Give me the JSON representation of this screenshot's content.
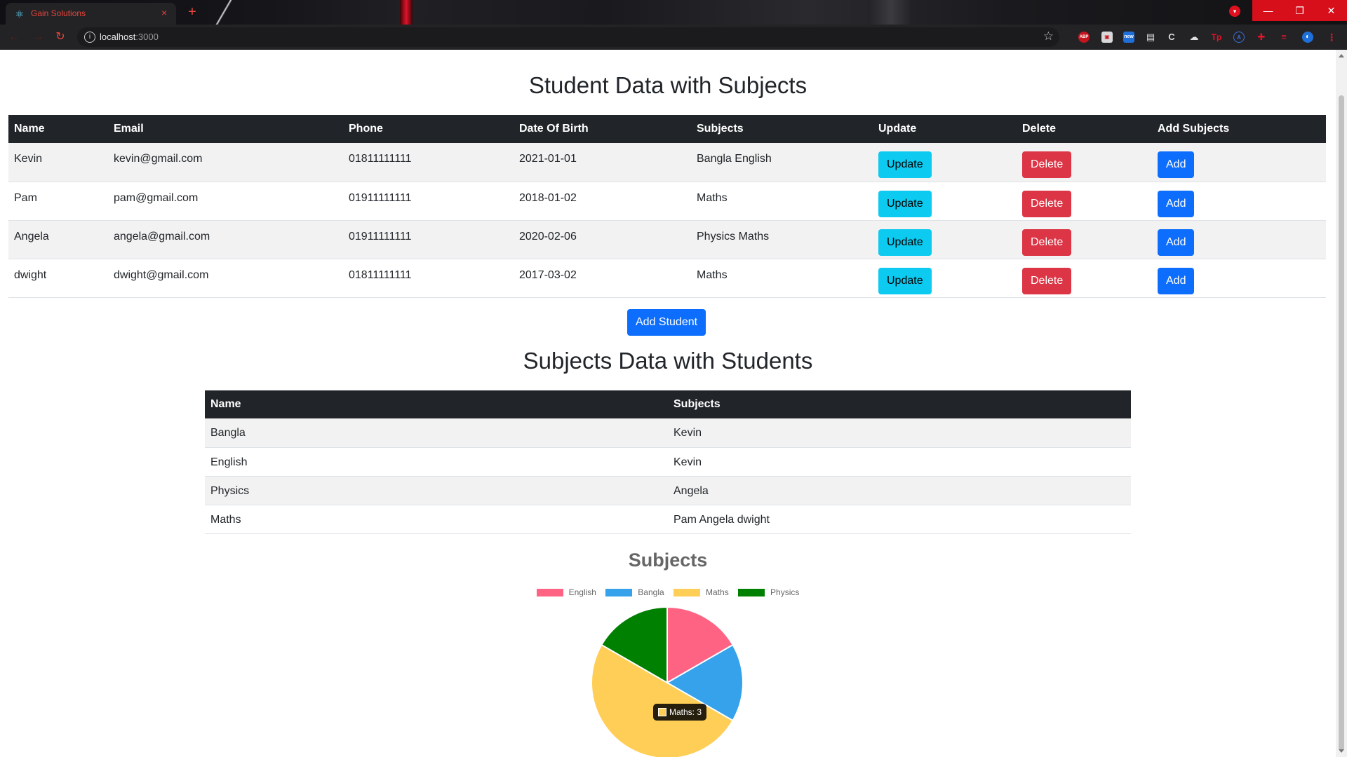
{
  "browser": {
    "tab_title": "Gain Solutions",
    "tab_close": "×",
    "new_tab": "+",
    "url_host": "localhost",
    "url_port": ":3000",
    "window_controls": {
      "minimize": "—",
      "restore": "❐",
      "close": "✕"
    },
    "ext_abp": "ABP",
    "ext_new": "new",
    "ext_tp": "Tp"
  },
  "students_section": {
    "title": "Student Data with Subjects",
    "headers": [
      "Name",
      "Email",
      "Phone",
      "Date Of Birth",
      "Subjects",
      "Update",
      "Delete",
      "Add Subjects"
    ],
    "rows": [
      {
        "name": "Kevin",
        "email": "kevin@gmail.com",
        "phone": "01811111111",
        "dob": "2021-01-01",
        "subjects": "Bangla English"
      },
      {
        "name": "Pam",
        "email": "pam@gmail.com",
        "phone": "01911111111",
        "dob": "2018-01-02",
        "subjects": "Maths"
      },
      {
        "name": "Angela",
        "email": "angela@gmail.com",
        "phone": "01911111111",
        "dob": "2020-02-06",
        "subjects": "Physics Maths"
      },
      {
        "name": "dwight",
        "email": "dwight@gmail.com",
        "phone": "01811111111",
        "dob": "2017-03-02",
        "subjects": "Maths"
      }
    ],
    "update_label": "Update",
    "delete_label": "Delete",
    "add_label": "Add",
    "add_student_label": "Add Student"
  },
  "subjects_section": {
    "title": "Subjects Data with Students",
    "headers": [
      "Name",
      "Subjects"
    ],
    "rows": [
      {
        "name": "Bangla",
        "students": "Kevin"
      },
      {
        "name": "English",
        "students": "Kevin"
      },
      {
        "name": "Physics",
        "students": "Angela"
      },
      {
        "name": "Maths",
        "students": "Pam Angela dwight"
      }
    ]
  },
  "chart_data": {
    "type": "pie",
    "title": "Subjects",
    "legend_position": "top",
    "categories": [
      "English",
      "Bangla",
      "Maths",
      "Physics"
    ],
    "values": [
      1,
      1,
      3,
      1
    ],
    "colors": [
      "#ff6384",
      "#36a2eb",
      "#ffce56",
      "#008000"
    ],
    "tooltip": {
      "label": "Maths: 3",
      "color": "#ffce56"
    }
  },
  "colors": {
    "header_bg": "#212529",
    "btn_info": "#0dcaf0",
    "btn_danger": "#dc3545",
    "btn_primary": "#0d6efd"
  }
}
